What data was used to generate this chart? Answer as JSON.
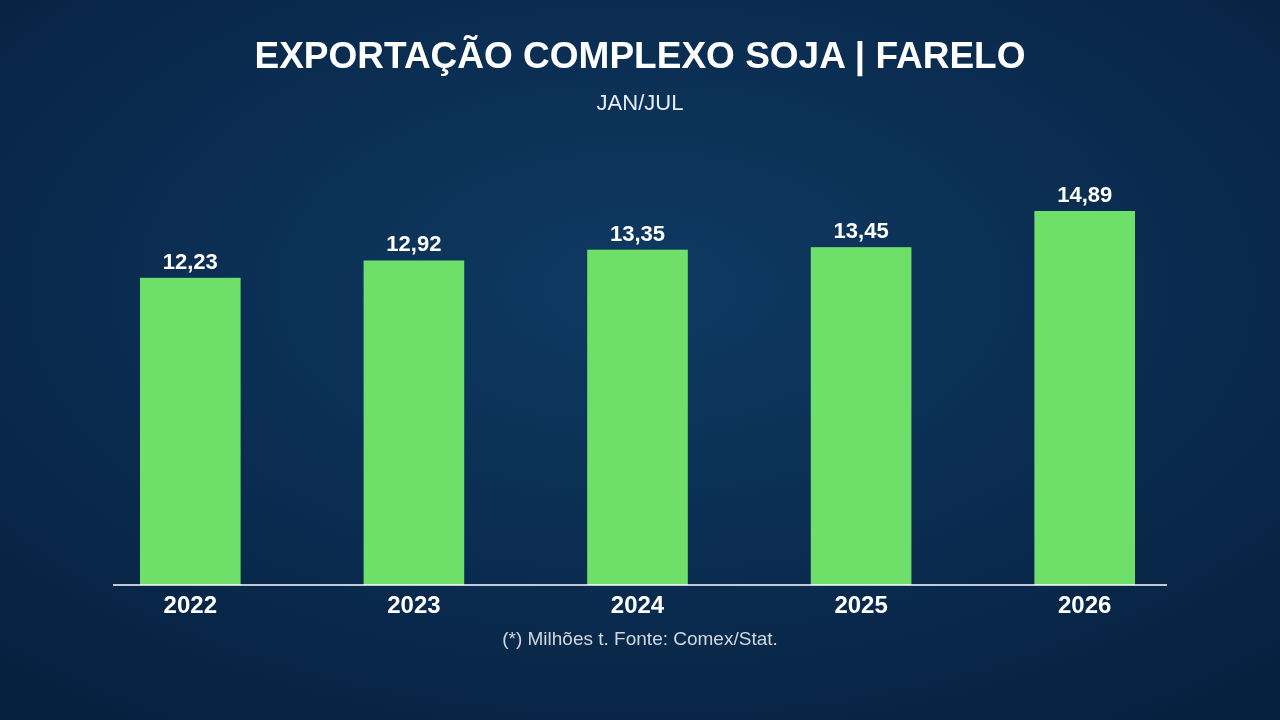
{
  "chart_data": {
    "type": "bar",
    "title": "EXPORTAÇÃO COMPLEXO SOJA | FARELO",
    "subtitle": "JAN/JUL",
    "categories": [
      "2022",
      "2023",
      "2024",
      "2025",
      "2026"
    ],
    "values": [
      12.23,
      12.92,
      13.35,
      13.45,
      14.89
    ],
    "value_labels": [
      "12,23",
      "12,92",
      "13,35",
      "13,45",
      "14,89"
    ],
    "color": "#6ee06a",
    "annotations": [
      "(*) Milhões t. Fonte: Comex/Stat."
    ]
  }
}
